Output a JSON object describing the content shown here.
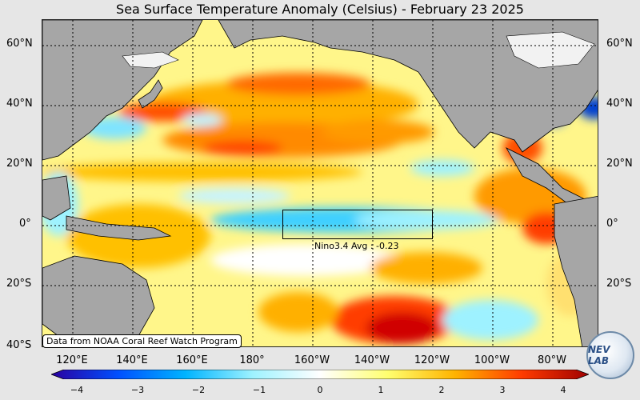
{
  "title": "Sea Surface Temperature Anomaly (Celsius) - February 23 2025",
  "lat_labels": [
    "60°N",
    "40°N",
    "20°N",
    "0°",
    "20°S",
    "40°S"
  ],
  "lon_labels": [
    "120°E",
    "140°E",
    "160°E",
    "180°",
    "160°W",
    "140°W",
    "120°W",
    "100°W",
    "80°W"
  ],
  "credit": "Data from NOAA Coral Reef Watch Program",
  "nino": {
    "label": "Nino3.4 Avg : -0.23",
    "value": -0.23
  },
  "logo_text": "NEV LAB",
  "colorbar": {
    "ticks": [
      "−4",
      "−3",
      "−2",
      "−1",
      "0",
      "1",
      "2",
      "3",
      "4"
    ],
    "colors": [
      "#2a00a0",
      "#0050ff",
      "#00b4ff",
      "#9ef2ff",
      "#ffffff",
      "#ffff70",
      "#ffb400",
      "#ff3c00",
      "#a00000"
    ]
  },
  "colors": {
    "land": "#a6a6a6",
    "ice": "#f2f2f2",
    "warm": "#ff9a00",
    "hot": "#d81a00",
    "cool": "#00c8ff",
    "mild": "#fff27a"
  }
}
